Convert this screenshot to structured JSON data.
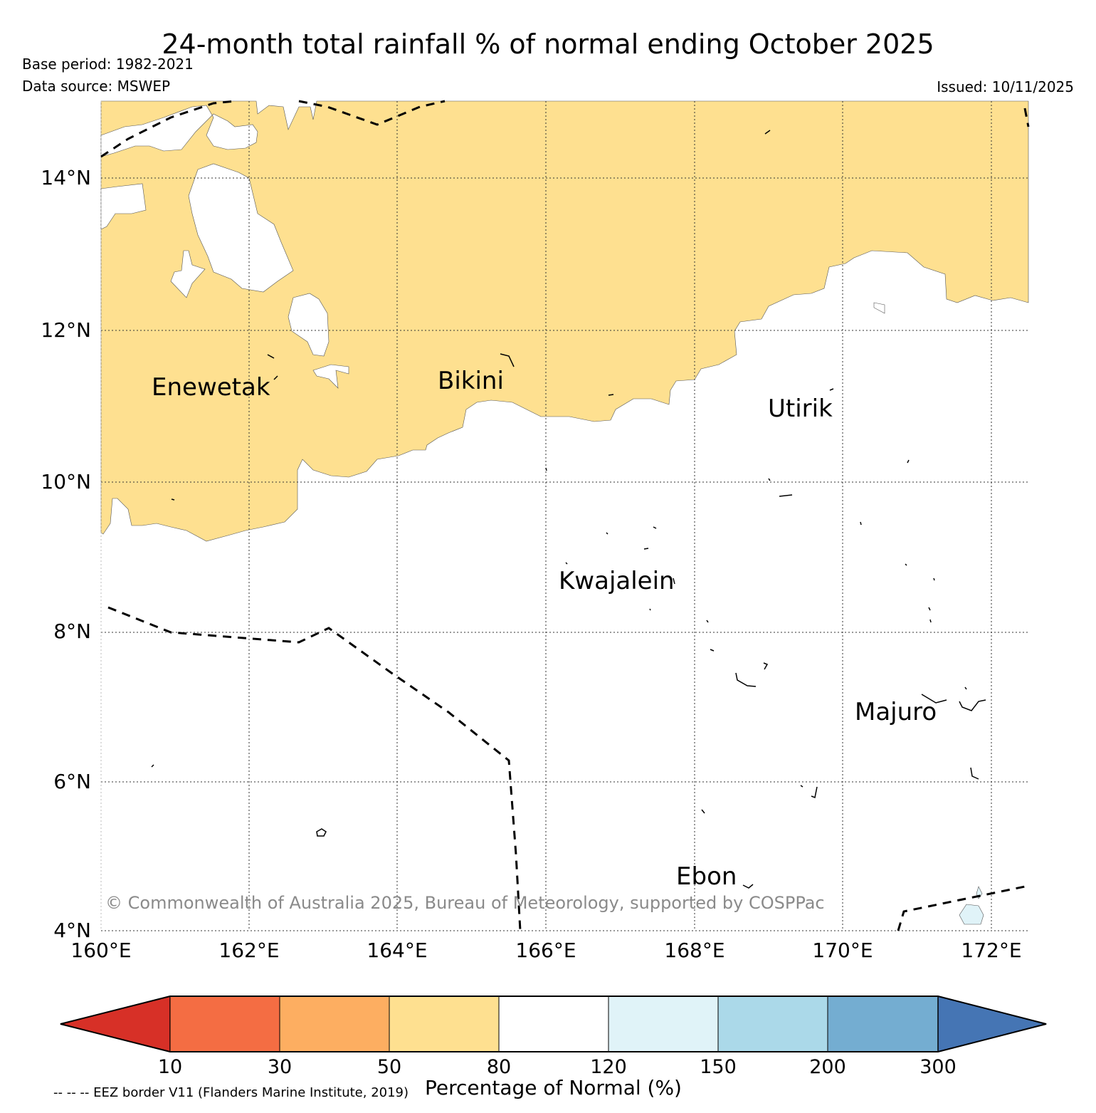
{
  "title": "24-month total rainfall % of normal ending October 2025",
  "base_period": "Base period: 1982-2021",
  "data_source": "Data source: MSWEP",
  "issued": "Issued: 10/11/2025",
  "map": {
    "lon_range": [
      160,
      172.5
    ],
    "lat_range": [
      4,
      15
    ],
    "lat_ticks": [
      "4°N",
      "6°N",
      "8°N",
      "10°N",
      "12°N",
      "14°N"
    ],
    "lon_ticks": [
      "160°E",
      "162°E",
      "164°E",
      "166°E",
      "168°E",
      "170°E",
      "172°E"
    ],
    "places": [
      {
        "name": "Enewetak",
        "lon": 162.2,
        "lat": 11.35
      },
      {
        "name": "Bikini",
        "lon": 165.4,
        "lat": 11.6
      },
      {
        "name": "Utirik",
        "lon": 169.8,
        "lat": 11.25
      },
      {
        "name": "Kwajalein",
        "lon": 167.7,
        "lat": 8.7
      },
      {
        "name": "Majuro",
        "lon": 171.2,
        "lat": 7.15
      },
      {
        "name": "Ebon",
        "lon": 168.6,
        "lat": 4.8
      }
    ],
    "copyright": "© Commonwealth of Australia 2025, Bureau of Meteorology, supported by COSPPac"
  },
  "colorbar": {
    "boundaries": [
      "10",
      "30",
      "50",
      "80",
      "120",
      "150",
      "200",
      "300"
    ],
    "colors": [
      "#d73027",
      "#f46d43",
      "#fdae61",
      "#fee090",
      "#ffffff",
      "#e0f3f8",
      "#abd9e9",
      "#74add1",
      "#4575b4"
    ],
    "label": "Percentage of Normal (%)"
  },
  "eez_note": "-- -- -- EEZ border V11 (Flanders Marine Institute, 2019)"
}
